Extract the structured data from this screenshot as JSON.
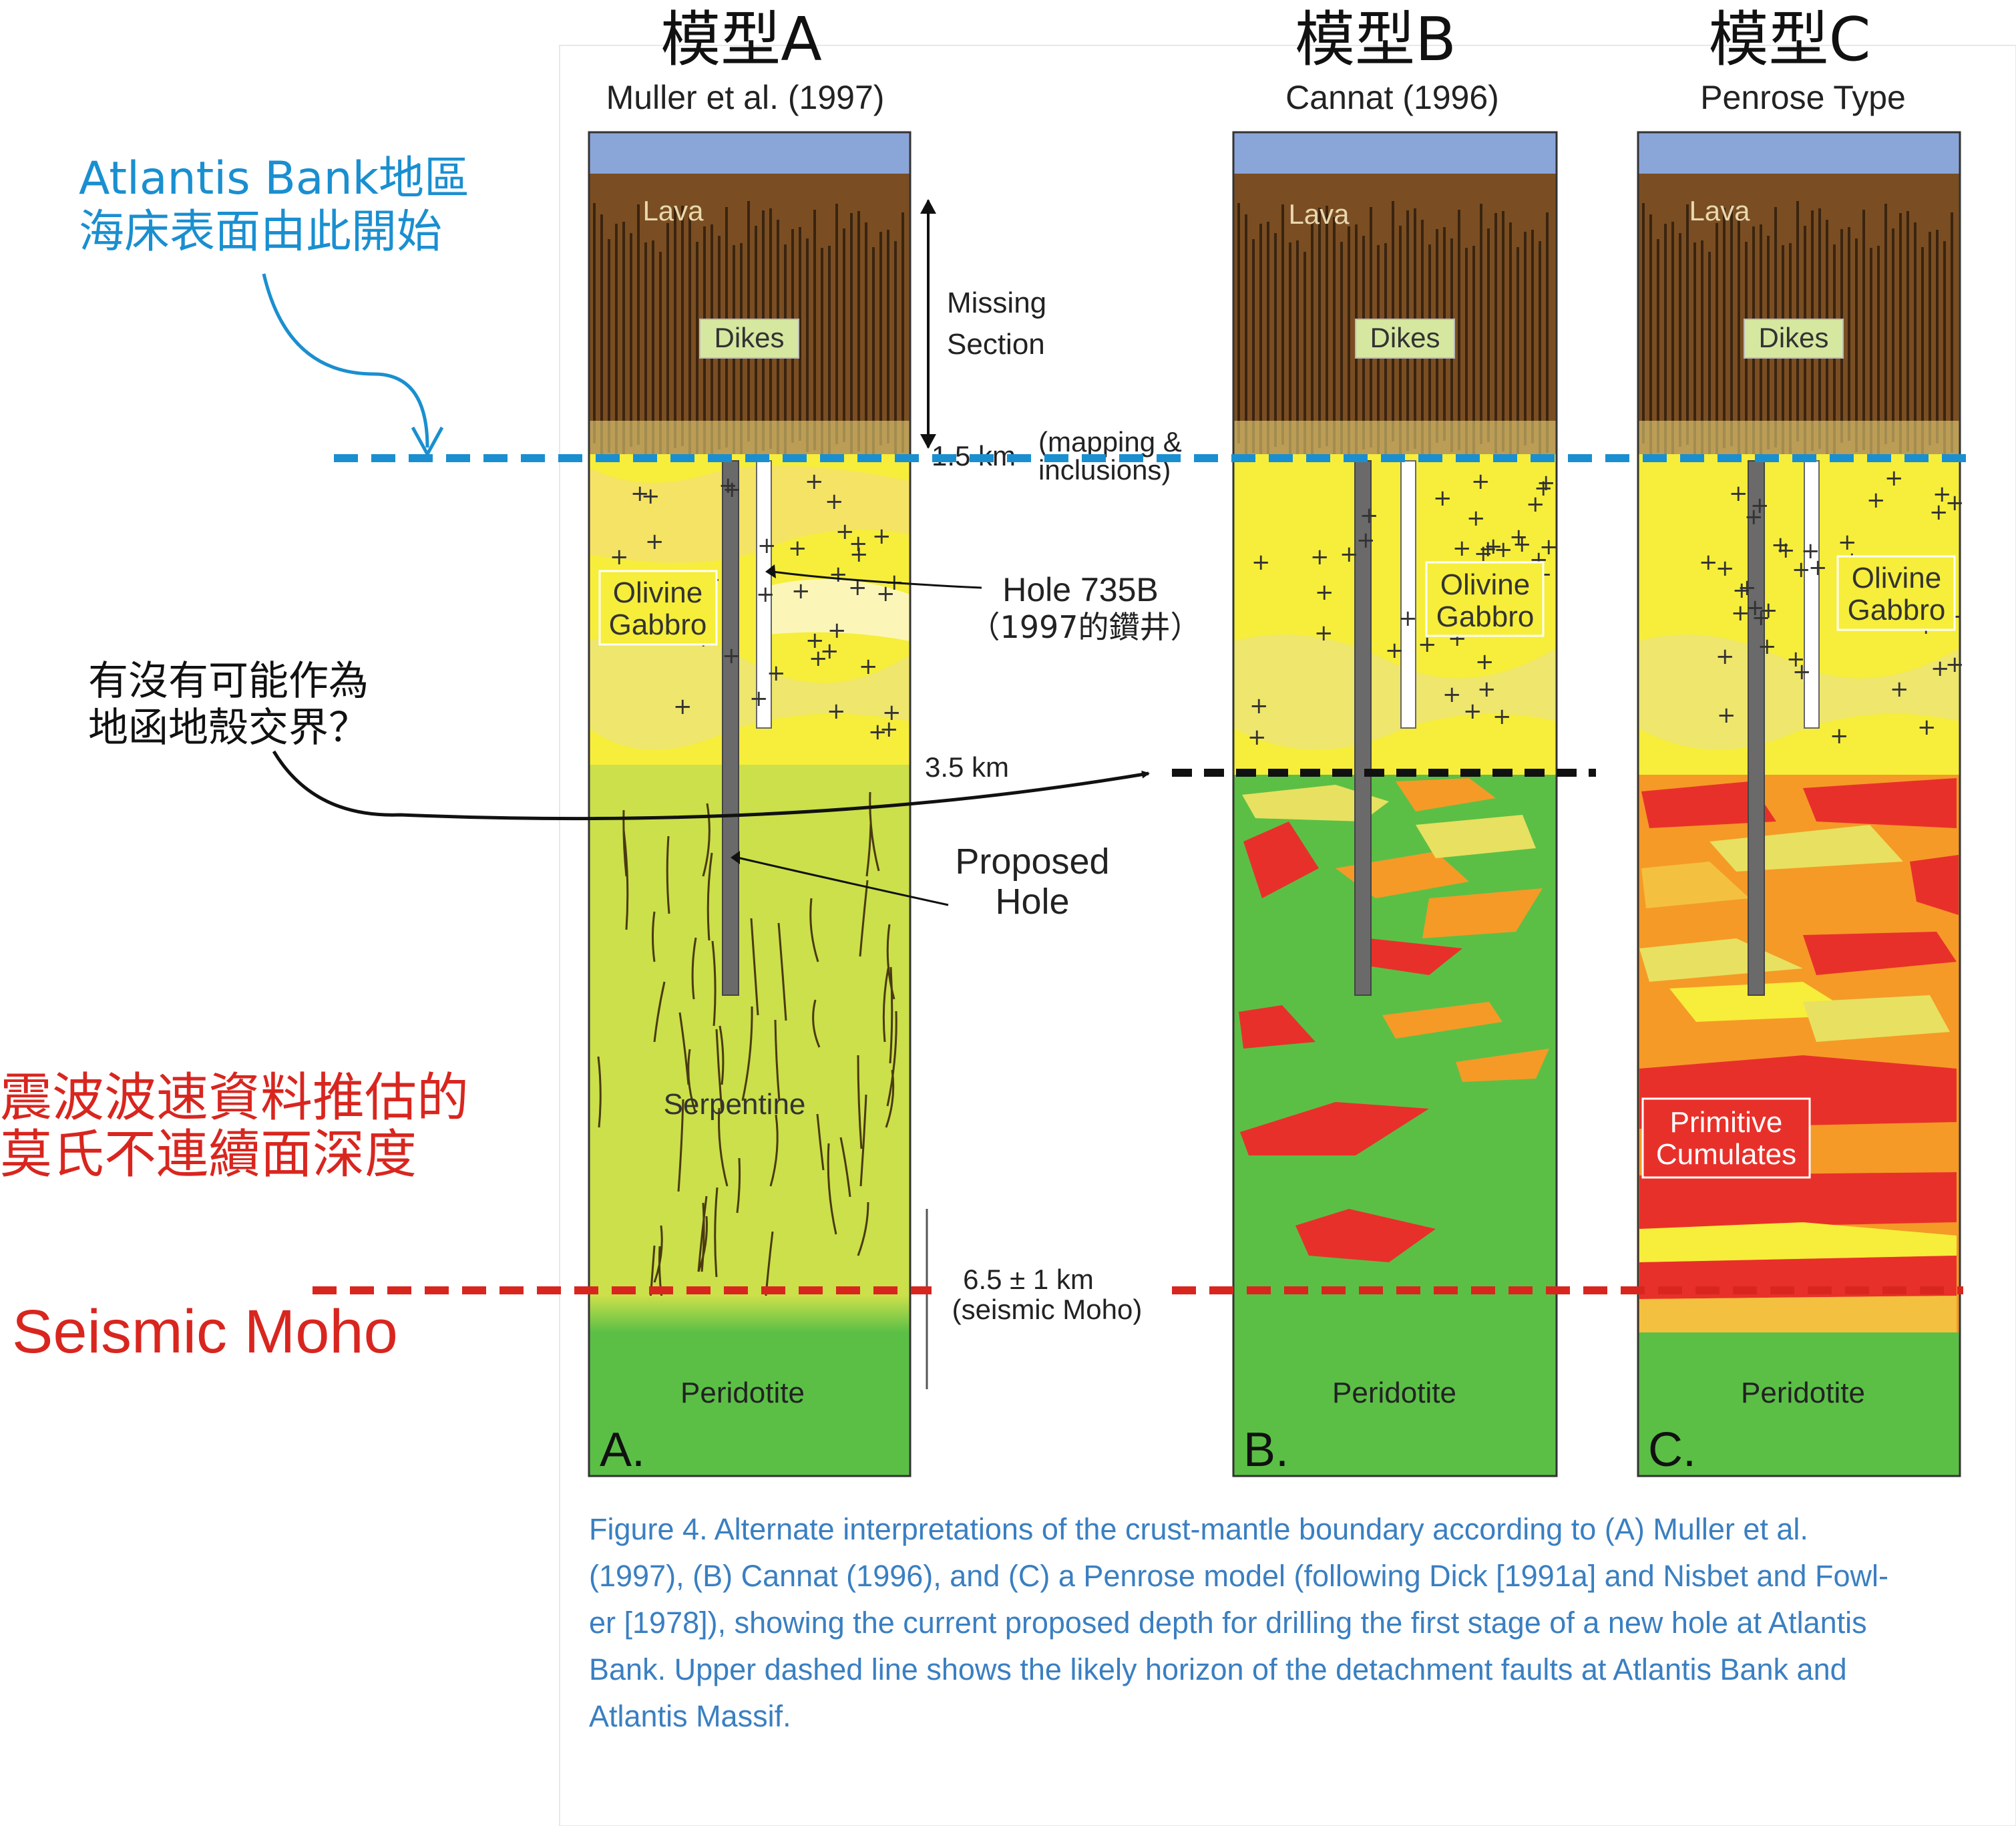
{
  "models": [
    {
      "title": "模型A",
      "subtitle": "Muller et al. (1997)",
      "panel": "A."
    },
    {
      "title": "模型B",
      "subtitle": "Cannat (1996)",
      "panel": "B."
    },
    {
      "title": "模型C",
      "subtitle": "Penrose Type",
      "panel": "C."
    }
  ],
  "layers": {
    "lava": "Lava",
    "dikes": "Dikes",
    "olivine_gabbro_1": "Olivine",
    "olivine_gabbro_2": "Gabbro",
    "serpentine": "Serpentine",
    "peridotite": "Peridotite",
    "primitive_1": "Primitive",
    "primitive_2": "Cumulates"
  },
  "depth_labels": {
    "missing_1": "Missing",
    "missing_2": "Section",
    "d15": "1.5 km",
    "mapping_1": "(mapping &",
    "mapping_2": "inclusions)",
    "d35": "3.5 km",
    "moho_1": "6.5 ± 1 km",
    "moho_2": "(seismic Moho)"
  },
  "holes": {
    "h735_1": "Hole 735B",
    "h735_2": "（1997的鑽井）",
    "proposed_1": "Proposed",
    "proposed_2": "Hole"
  },
  "annotations": {
    "atlantis_1": "Atlantis Bank地區",
    "atlantis_2": "海床表面由此開始",
    "question_1": "有沒有可能作為",
    "question_2": "地函地殼交界？",
    "seismic_1": "震波波速資料推估的",
    "seismic_2": "莫氏不連續面深度",
    "moho_label": "Seismic Moho"
  },
  "caption": {
    "line1": "Figure 4. Alternate interpretations of the crust-mantle boundary according to (A) Muller et al.",
    "line2": "(1997), (B) Cannat (1996), and (C) a Penrose model (following Dick [1991a] and Nisbet and Fowl-",
    "line3": "er [1978]), showing the current proposed depth for drilling the first stage of a new hole at Atlantis",
    "line4": "Bank. Upper dashed line shows the likely horizon of the detachment faults at Atlantis Bank and",
    "line5": "Atlantis Massif."
  },
  "colors": {
    "sea": "#8aa5d8",
    "lava": "#7a4e22",
    "gabbro_yellow": "#f6ee3a",
    "serpentine": "#cbe04a",
    "peridotite": "#5bbf46",
    "orange": "#f59a27",
    "red": "#e8302a",
    "blue_annotation": "#1a8fd0",
    "red_annotation": "#d8261f",
    "caption_blue": "#3a7fc1"
  }
}
